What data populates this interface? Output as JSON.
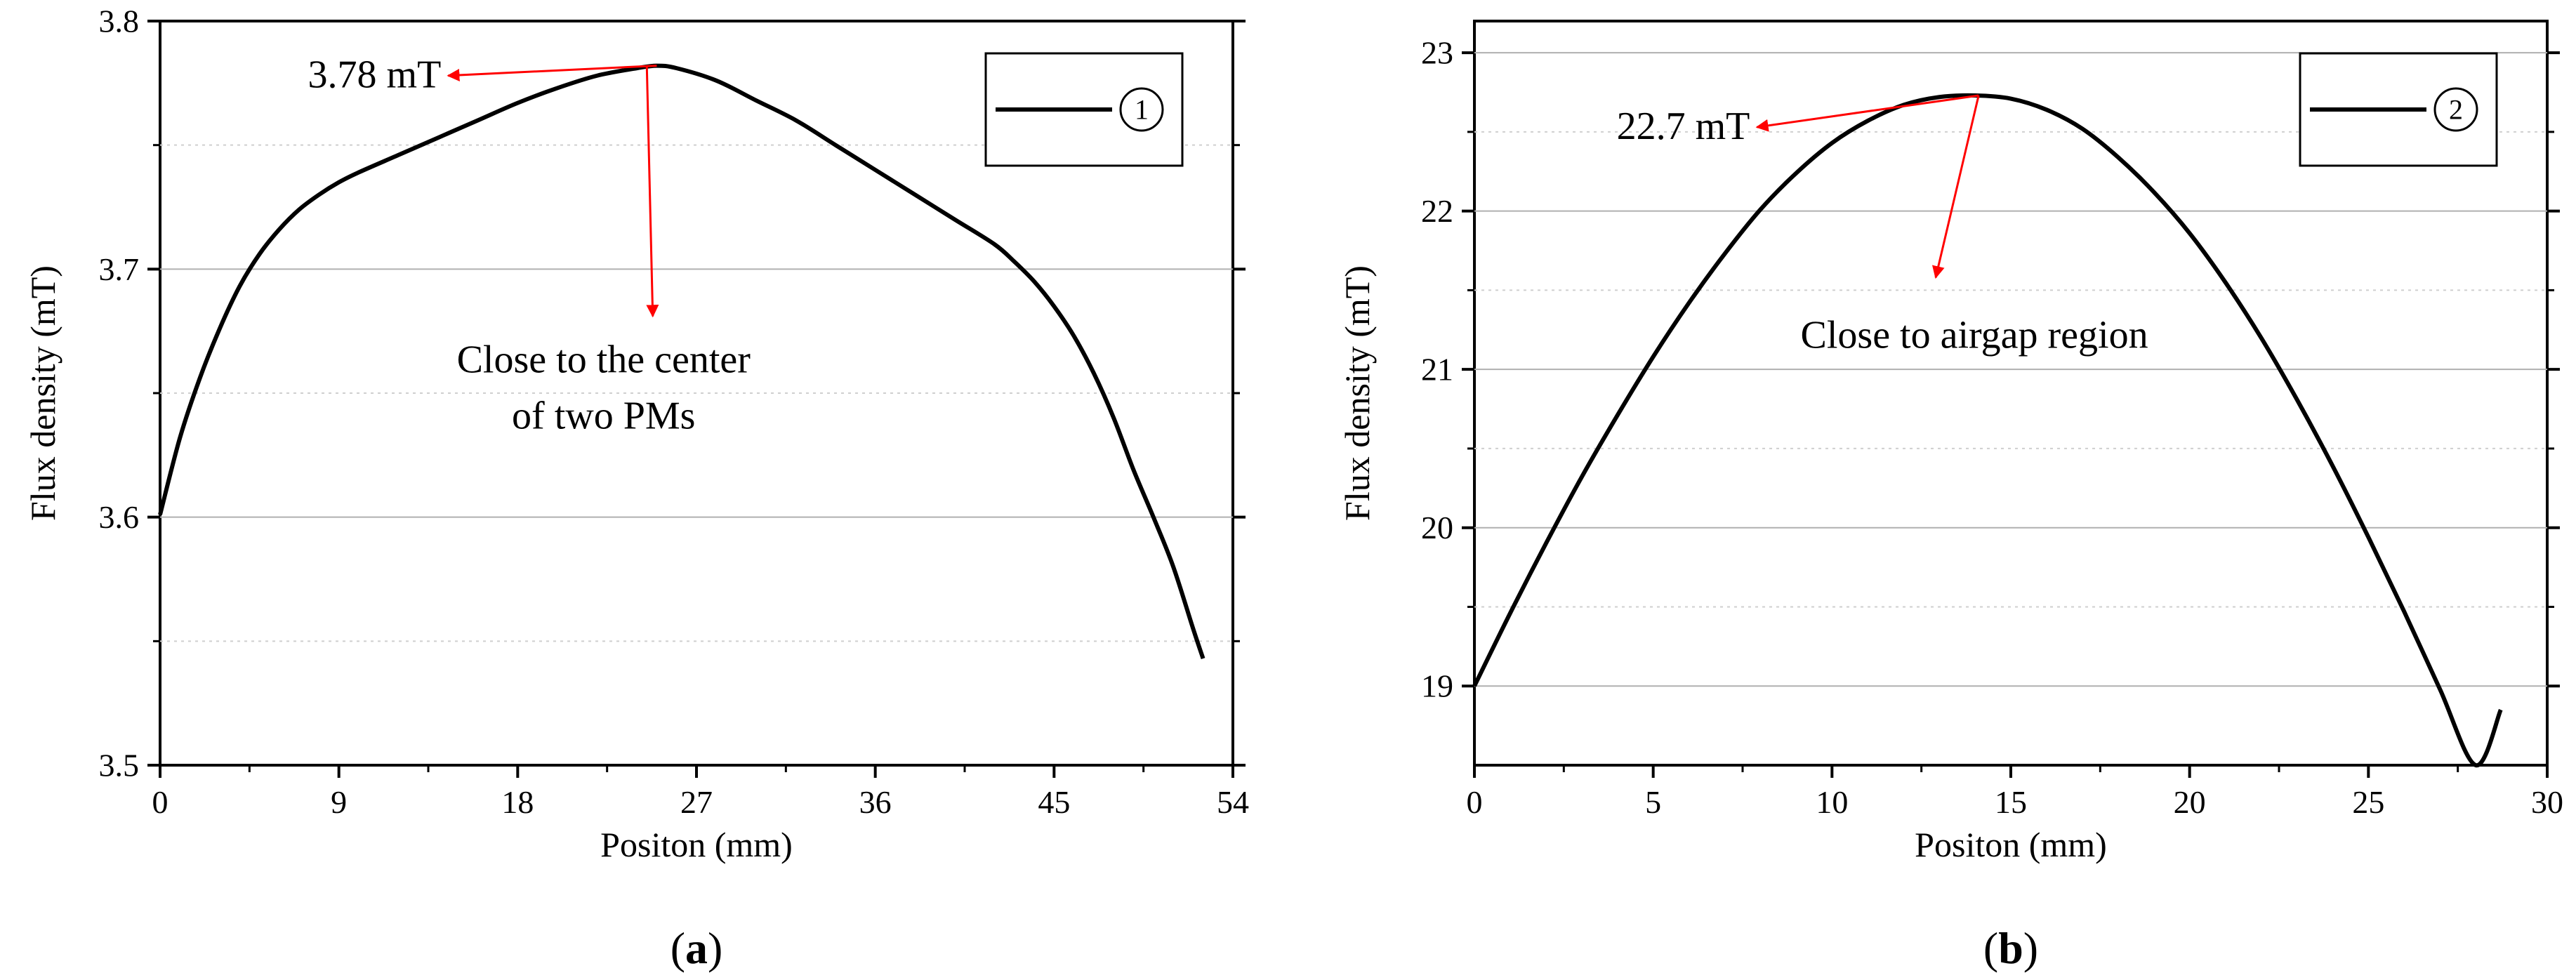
{
  "chart_data": [
    {
      "type": "line",
      "panel_label": "(a)",
      "xlabel": "Positon (mm)",
      "ylabel": "Flux density (mT)",
      "xlim": [
        0,
        54
      ],
      "ylim": [
        3.5,
        3.8
      ],
      "xticks": [
        0,
        9,
        18,
        27,
        36,
        45,
        54
      ],
      "yticks": [
        3.5,
        3.6,
        3.7,
        3.8
      ],
      "grid": "horizontal",
      "legend_position": "top-right",
      "series": [
        {
          "name": "①",
          "color": "#000000",
          "x": [
            0,
            1,
            2,
            3,
            4,
            5,
            6,
            7,
            8,
            9,
            10,
            12,
            14,
            16,
            18,
            20,
            22,
            24,
            25,
            26,
            28,
            30,
            32,
            34,
            36,
            38,
            40,
            42,
            43,
            44,
            45,
            46,
            47,
            48,
            49,
            50,
            51,
            52,
            52.5
          ],
          "y": [
            3.601,
            3.632,
            3.656,
            3.676,
            3.693,
            3.706,
            3.716,
            3.724,
            3.73,
            3.735,
            3.739,
            3.746,
            3.753,
            3.76,
            3.767,
            3.773,
            3.778,
            3.781,
            3.782,
            3.781,
            3.776,
            3.768,
            3.76,
            3.75,
            3.74,
            3.73,
            3.72,
            3.71,
            3.703,
            3.695,
            3.685,
            3.673,
            3.658,
            3.64,
            3.619,
            3.6,
            3.58,
            3.555,
            3.543
          ]
        }
      ],
      "annotations": [
        {
          "text": "3.78 mT",
          "from": [
            25,
            3.782
          ],
          "to": [
            14.5,
            3.778
          ]
        },
        {
          "text": "Close to the center",
          "text2": "of two PMs",
          "from": [
            24.5,
            3.782
          ],
          "to": [
            24.8,
            3.681
          ]
        }
      ]
    },
    {
      "type": "line",
      "panel_label": "(b)",
      "xlabel": "Positon (mm)",
      "ylabel": "Flux density (mT)",
      "xlim": [
        0,
        30
      ],
      "ylim": [
        18.5,
        23.2
      ],
      "xticks": [
        0,
        5,
        10,
        15,
        20,
        25,
        30
      ],
      "yticks": [
        19,
        20,
        21,
        22,
        23
      ],
      "grid": "horizontal",
      "legend_position": "top-right",
      "series": [
        {
          "name": "②",
          "color": "#000000",
          "x": [
            0,
            1,
            2,
            3,
            4,
            5,
            6,
            7,
            8,
            9,
            10,
            11,
            12,
            13,
            14,
            15,
            16,
            17,
            18,
            19,
            20,
            21,
            22,
            23,
            24,
            25,
            26,
            27,
            28,
            28.7
          ],
          "y": [
            19.0,
            19.46,
            19.9,
            20.32,
            20.71,
            21.08,
            21.42,
            21.73,
            22.01,
            22.24,
            22.43,
            22.57,
            22.67,
            22.72,
            22.73,
            22.71,
            22.64,
            22.52,
            22.34,
            22.12,
            21.86,
            21.55,
            21.2,
            20.81,
            20.39,
            19.94,
            19.47,
            18.98,
            18.5,
            18.85
          ]
        }
      ],
      "annotations": [
        {
          "text": "22.7 mT",
          "from": [
            14.1,
            22.73
          ],
          "to": [
            7.9,
            22.53
          ]
        },
        {
          "text": "Close to airgap region",
          "from": [
            14.1,
            22.73
          ],
          "to": [
            12.9,
            21.58
          ]
        }
      ]
    }
  ]
}
